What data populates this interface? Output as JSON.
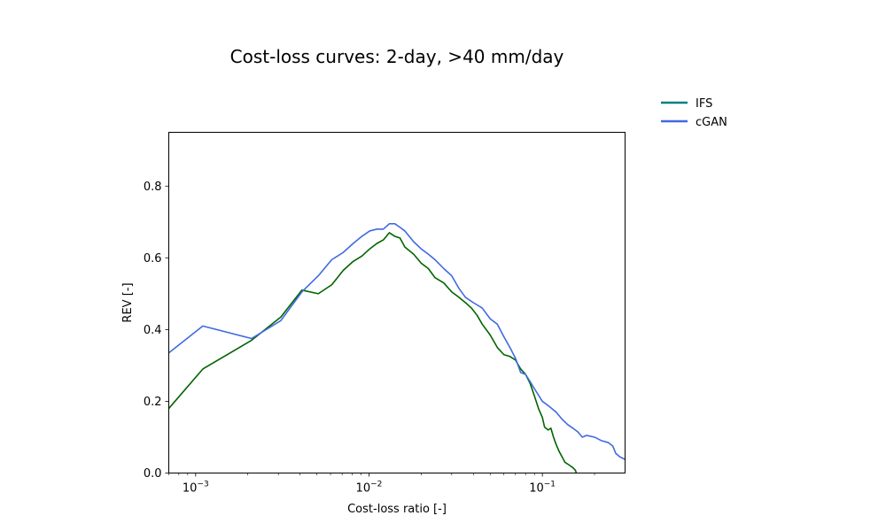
{
  "chart_data": {
    "type": "line",
    "title": "Cost-loss curves: 2-day, >40 mm/day",
    "xlabel": "Cost-loss ratio [-]",
    "ylabel": "REV [-]",
    "xscale": "log",
    "xlim": [
      0.0007,
      0.3
    ],
    "ylim": [
      0,
      0.95
    ],
    "x_ticks": [
      {
        "value": 0.001,
        "base": "10",
        "exp": "−3"
      },
      {
        "value": 0.01,
        "base": "10",
        "exp": "−2"
      },
      {
        "value": 0.1,
        "base": "10",
        "exp": "−1"
      }
    ],
    "y_ticks": [
      {
        "value": 0.0,
        "label": "0.0"
      },
      {
        "value": 0.2,
        "label": "0.2"
      },
      {
        "value": 0.4,
        "label": "0.4"
      },
      {
        "value": 0.6,
        "label": "0.6"
      },
      {
        "value": 0.8,
        "label": "0.8"
      }
    ],
    "grid": false,
    "legend_position": "outside top-right",
    "series": [
      {
        "name": "IFS",
        "color": "#006400",
        "legend_color": "#008080",
        "points": [
          [
            0.0007,
            0.18
          ],
          [
            0.0011,
            0.29
          ],
          [
            0.0021,
            0.37
          ],
          [
            0.0031,
            0.435
          ],
          [
            0.0041,
            0.51
          ],
          [
            0.0051,
            0.5
          ],
          [
            0.0061,
            0.525
          ],
          [
            0.0071,
            0.565
          ],
          [
            0.0081,
            0.59
          ],
          [
            0.0091,
            0.605
          ],
          [
            0.0101,
            0.625
          ],
          [
            0.0111,
            0.64
          ],
          [
            0.0121,
            0.65
          ],
          [
            0.0131,
            0.67
          ],
          [
            0.0141,
            0.66
          ],
          [
            0.0151,
            0.655
          ],
          [
            0.0161,
            0.63
          ],
          [
            0.0181,
            0.61
          ],
          [
            0.02,
            0.585
          ],
          [
            0.022,
            0.57
          ],
          [
            0.024,
            0.545
          ],
          [
            0.027,
            0.53
          ],
          [
            0.03,
            0.505
          ],
          [
            0.033,
            0.49
          ],
          [
            0.036,
            0.475
          ],
          [
            0.039,
            0.46
          ],
          [
            0.042,
            0.44
          ],
          [
            0.045,
            0.415
          ],
          [
            0.05,
            0.385
          ],
          [
            0.055,
            0.35
          ],
          [
            0.06,
            0.33
          ],
          [
            0.065,
            0.325
          ],
          [
            0.07,
            0.315
          ],
          [
            0.075,
            0.29
          ],
          [
            0.08,
            0.275
          ],
          [
            0.085,
            0.25
          ],
          [
            0.09,
            0.215
          ],
          [
            0.095,
            0.18
          ],
          [
            0.1,
            0.155
          ],
          [
            0.103,
            0.128
          ],
          [
            0.108,
            0.12
          ],
          [
            0.112,
            0.125
          ],
          [
            0.116,
            0.1
          ],
          [
            0.12,
            0.08
          ],
          [
            0.125,
            0.06
          ],
          [
            0.13,
            0.045
          ],
          [
            0.135,
            0.03
          ],
          [
            0.14,
            0.025
          ],
          [
            0.145,
            0.02
          ],
          [
            0.15,
            0.015
          ],
          [
            0.155,
            0.008
          ],
          [
            0.157,
            0.0
          ]
        ]
      },
      {
        "name": "cGAN",
        "color": "#4169E1",
        "legend_color": "#4169E1",
        "points": [
          [
            0.0007,
            0.335
          ],
          [
            0.0011,
            0.41
          ],
          [
            0.0021,
            0.375
          ],
          [
            0.0031,
            0.425
          ],
          [
            0.0041,
            0.505
          ],
          [
            0.0051,
            0.55
          ],
          [
            0.0061,
            0.595
          ],
          [
            0.0071,
            0.615
          ],
          [
            0.0081,
            0.64
          ],
          [
            0.0091,
            0.66
          ],
          [
            0.0101,
            0.675
          ],
          [
            0.0111,
            0.68
          ],
          [
            0.0121,
            0.68
          ],
          [
            0.0131,
            0.695
          ],
          [
            0.0141,
            0.695
          ],
          [
            0.0151,
            0.685
          ],
          [
            0.0161,
            0.675
          ],
          [
            0.0181,
            0.645
          ],
          [
            0.02,
            0.625
          ],
          [
            0.022,
            0.61
          ],
          [
            0.024,
            0.595
          ],
          [
            0.027,
            0.57
          ],
          [
            0.03,
            0.55
          ],
          [
            0.033,
            0.515
          ],
          [
            0.036,
            0.49
          ],
          [
            0.04,
            0.475
          ],
          [
            0.045,
            0.46
          ],
          [
            0.05,
            0.43
          ],
          [
            0.055,
            0.415
          ],
          [
            0.06,
            0.38
          ],
          [
            0.065,
            0.35
          ],
          [
            0.07,
            0.32
          ],
          [
            0.075,
            0.28
          ],
          [
            0.08,
            0.275
          ],
          [
            0.085,
            0.255
          ],
          [
            0.09,
            0.235
          ],
          [
            0.1,
            0.2
          ],
          [
            0.11,
            0.185
          ],
          [
            0.12,
            0.17
          ],
          [
            0.13,
            0.15
          ],
          [
            0.14,
            0.135
          ],
          [
            0.15,
            0.125
          ],
          [
            0.16,
            0.115
          ],
          [
            0.17,
            0.1
          ],
          [
            0.18,
            0.105
          ],
          [
            0.2,
            0.1
          ],
          [
            0.22,
            0.09
          ],
          [
            0.24,
            0.085
          ],
          [
            0.255,
            0.075
          ],
          [
            0.265,
            0.055
          ],
          [
            0.28,
            0.045
          ],
          [
            0.3,
            0.038
          ]
        ]
      }
    ]
  }
}
